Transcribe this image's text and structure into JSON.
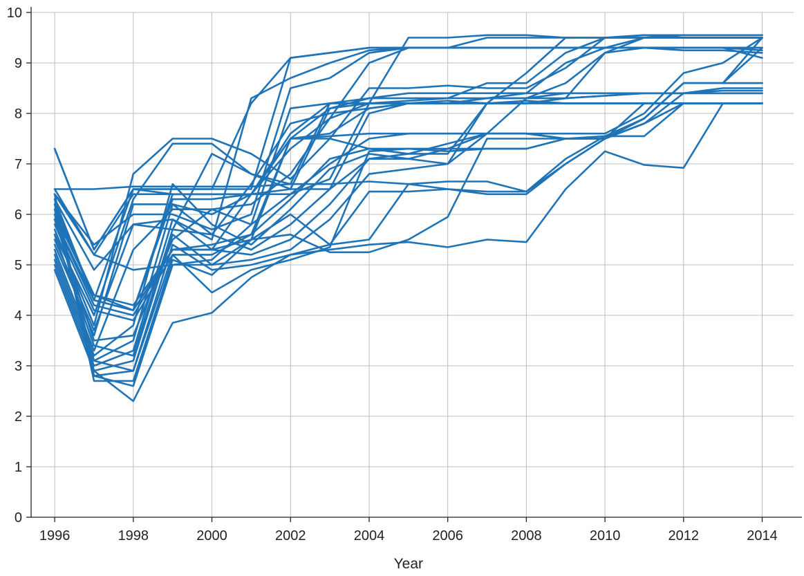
{
  "chart_data": {
    "type": "line",
    "title": "",
    "xlabel": "Year",
    "ylabel": "",
    "xlim": [
      1995.4,
      2014.8
    ],
    "ylim": [
      0,
      10
    ],
    "grid": true,
    "legend": "none",
    "x_ticks": [
      1996,
      1998,
      2000,
      2002,
      2004,
      2006,
      2008,
      2010,
      2012,
      2014
    ],
    "x_tick_labels": [
      "1996",
      "1998",
      "2000",
      "2002",
      "2004",
      "2006",
      "2008",
      "2010",
      "2012",
      "2014"
    ],
    "y_ticks": [
      0,
      1,
      2,
      3,
      4,
      5,
      6,
      7,
      8,
      9,
      10
    ],
    "y_tick_labels": [
      "0",
      "1",
      "2",
      "3",
      "4",
      "5",
      "6",
      "7",
      "8",
      "9",
      "10"
    ],
    "line_color": "#1f73b7",
    "x": [
      1996,
      1997,
      1998,
      1999,
      2000,
      2001,
      2002,
      2003,
      2004,
      2005,
      2006,
      2007,
      2008,
      2009,
      2010,
      2011,
      2012,
      2013,
      2014
    ],
    "series": [
      {
        "values": [
          7.3,
          5.3,
          6.5,
          6.5,
          6.5,
          6.5,
          9.1,
          9.2,
          9.3,
          9.3,
          9.3,
          9.3,
          9.3,
          9.3,
          9.3,
          9.3,
          9.3,
          9.3,
          9.3
        ]
      },
      {
        "values": [
          7.3,
          5.3,
          6.5,
          6.5,
          6.5,
          8.2,
          9.1,
          9.2,
          9.3,
          9.3,
          9.3,
          9.3,
          9.3,
          9.3,
          9.3,
          9.3,
          9.3,
          9.3,
          9.25
        ]
      },
      {
        "values": [
          6.5,
          6.5,
          6.55,
          6.55,
          6.55,
          6.55,
          6.6,
          6.6,
          6.65,
          6.6,
          6.65,
          6.65,
          6.45,
          7.1,
          7.55,
          7.9,
          8.6,
          8.6,
          9.5
        ]
      },
      {
        "values": [
          6.4,
          5.2,
          6.4,
          6.4,
          6.4,
          6.4,
          7.5,
          7.55,
          7.6,
          7.6,
          7.6,
          7.6,
          7.6,
          7.6,
          7.6,
          8.0,
          8.8,
          9.0,
          9.5
        ]
      },
      {
        "values": [
          6.3,
          4.3,
          6.5,
          6.4,
          6.4,
          6.4,
          6.5,
          8.1,
          8.2,
          8.2,
          8.2,
          8.2,
          8.2,
          8.2,
          8.2,
          8.2,
          8.2,
          8.2,
          8.2
        ]
      },
      {
        "values": [
          6.2,
          4.3,
          4.1,
          6.4,
          6.4,
          6.4,
          7.5,
          8.1,
          8.3,
          8.4,
          8.4,
          8.4,
          8.4,
          8.4,
          8.4,
          8.4,
          8.4,
          8.45,
          8.45
        ]
      },
      {
        "values": [
          6.1,
          4.4,
          4.1,
          6.3,
          6.3,
          6.4,
          7.3,
          7.9,
          8.2,
          8.2,
          8.2,
          8.2,
          8.25,
          8.2,
          8.2,
          8.2,
          8.2,
          8.2,
          8.2
        ]
      },
      {
        "values": [
          6.0,
          4.4,
          4.2,
          5.3,
          5.3,
          6.4,
          7.6,
          8.2,
          8.3,
          8.3,
          8.3,
          8.3,
          8.3,
          8.3,
          8.35,
          8.4,
          8.4,
          8.4,
          8.4
        ]
      },
      {
        "values": [
          5.9,
          4.3,
          4.1,
          5.3,
          5.3,
          5.5,
          7.5,
          7.6,
          8.1,
          8.2,
          8.2,
          8.2,
          8.2,
          8.2,
          8.2,
          8.2,
          8.2,
          8.2,
          8.2
        ]
      },
      {
        "values": [
          5.9,
          4.2,
          4.0,
          5.3,
          5.4,
          5.6,
          7.5,
          7.5,
          7.3,
          7.3,
          7.3,
          7.6,
          7.6,
          7.5,
          7.5,
          8.2,
          8.2,
          8.2,
          8.2
        ]
      },
      {
        "values": [
          5.8,
          4.1,
          3.9,
          5.2,
          5.2,
          5.6,
          6.3,
          7.1,
          7.3,
          7.2,
          7.2,
          8.2,
          8.2,
          8.3,
          9.2,
          9.3,
          9.3,
          9.3,
          9.3
        ]
      },
      {
        "values": [
          5.7,
          3.8,
          6.8,
          7.5,
          7.5,
          7.2,
          6.7,
          7.5,
          8.5,
          8.5,
          8.55,
          8.5,
          8.5,
          8.9,
          9.5,
          9.5,
          9.5,
          9.5,
          9.5
        ]
      },
      {
        "values": [
          5.6,
          4.0,
          6.3,
          7.4,
          7.4,
          6.8,
          6.6,
          8.2,
          8.2,
          8.25,
          8.3,
          8.6,
          8.6,
          9.2,
          9.5,
          9.55,
          9.5,
          9.5,
          9.5
        ]
      },
      {
        "values": [
          5.5,
          3.7,
          5.8,
          5.7,
          7.2,
          6.8,
          6.5,
          6.5,
          8.0,
          8.2,
          8.2,
          8.3,
          8.4,
          9.0,
          9.3,
          9.5,
          9.5,
          9.5,
          9.5
        ]
      },
      {
        "values": [
          5.4,
          3.6,
          6.2,
          6.2,
          6.0,
          6.4,
          6.4,
          6.7,
          8.2,
          9.5,
          9.5,
          9.55,
          9.55,
          9.5,
          9.5,
          9.55,
          9.55,
          9.55,
          9.55
        ]
      },
      {
        "values": [
          5.3,
          3.3,
          5.3,
          6.1,
          6.1,
          6.2,
          6.8,
          7.9,
          9.0,
          9.3,
          9.3,
          9.5,
          9.5,
          9.5,
          9.5,
          9.5,
          9.55,
          9.55,
          9.55
        ]
      },
      {
        "values": [
          5.2,
          3.2,
          3.8,
          6.6,
          5.8,
          5.4,
          6.1,
          6.9,
          7.2,
          7.1,
          7.0,
          8.2,
          8.8,
          9.5,
          9.5,
          9.5,
          9.5,
          9.5,
          9.5
        ]
      },
      {
        "values": [
          5.1,
          3.1,
          3.5,
          6.2,
          5.6,
          5.3,
          5.8,
          6.5,
          7.1,
          7.2,
          7.4,
          7.6,
          8.3,
          8.6,
          9.2,
          9.5,
          9.5,
          9.5,
          9.5
        ]
      },
      {
        "values": [
          5.0,
          3.0,
          3.3,
          5.9,
          5.3,
          5.2,
          5.5,
          6.2,
          7.1,
          7.1,
          7.3,
          7.3,
          7.3,
          7.5,
          7.5,
          7.9,
          8.6,
          8.6,
          9.3
        ]
      },
      {
        "values": [
          4.9,
          2.9,
          3.1,
          5.6,
          5.0,
          5.1,
          5.3,
          5.9,
          6.8,
          6.9,
          7.0,
          7.6,
          7.6,
          7.5,
          7.5,
          7.8,
          8.4,
          8.5,
          8.5
        ]
      },
      {
        "values": [
          6.4,
          2.8,
          2.9,
          5.4,
          4.9,
          5.0,
          5.2,
          5.4,
          6.45,
          6.45,
          6.5,
          6.45,
          6.45,
          7.0,
          7.5,
          7.9,
          8.6,
          8.6,
          8.6
        ]
      },
      {
        "values": [
          6.3,
          2.7,
          2.7,
          5.1,
          4.8,
          5.5,
          6.0,
          5.4,
          5.5,
          6.6,
          6.5,
          6.4,
          6.4,
          7.0,
          7.5,
          7.9,
          8.6,
          8.6,
          8.6
        ]
      },
      {
        "values": [
          6.2,
          2.8,
          2.6,
          5.0,
          5.0,
          5.5,
          5.6,
          5.25,
          5.25,
          5.5,
          5.95,
          7.5,
          7.5,
          7.5,
          7.55,
          7.55,
          8.2,
          8.2,
          8.2
        ]
      },
      {
        "values": [
          6.1,
          2.9,
          2.3,
          3.85,
          4.05,
          4.75,
          5.2,
          5.3,
          5.4,
          5.45,
          5.35,
          5.5,
          5.45,
          6.5,
          7.25,
          6.98,
          6.92,
          8.2,
          8.2
        ]
      },
      {
        "values": [
          6.0,
          3.1,
          2.9,
          5.2,
          4.45,
          4.9,
          5.1,
          5.35,
          7.25,
          7.3,
          7.25,
          7.3,
          7.3,
          7.5,
          7.5,
          7.8,
          8.2,
          8.2,
          8.2
        ]
      },
      {
        "values": [
          6.5,
          5.2,
          4.9,
          5.0,
          5.1,
          5.8,
          6.4,
          7.0,
          7.5,
          7.6,
          7.6,
          7.6,
          7.6,
          7.5,
          7.5,
          7.8,
          8.2,
          8.2,
          8.2
        ]
      },
      {
        "values": [
          6.4,
          5.4,
          6.0,
          6.0,
          5.7,
          6.0,
          8.5,
          8.7,
          9.2,
          9.3,
          9.3,
          9.3,
          9.3,
          9.3,
          9.3,
          9.3,
          9.25,
          9.25,
          9.2
        ]
      },
      {
        "values": [
          6.3,
          4.9,
          5.8,
          5.9,
          5.5,
          8.3,
          8.7,
          9.0,
          9.25,
          9.3,
          9.3,
          9.3,
          9.3,
          9.3,
          9.3,
          9.3,
          9.3,
          9.3,
          9.1
        ]
      },
      {
        "values": [
          5.9,
          3.5,
          3.6,
          5.5,
          6.1,
          5.8,
          8.1,
          8.2,
          8.2,
          8.2,
          8.2,
          8.3,
          8.3,
          8.4,
          8.4,
          8.4,
          8.4,
          8.4,
          8.4
        ]
      },
      {
        "values": [
          5.6,
          3.4,
          3.2,
          5.7,
          5.6,
          6.6,
          7.8,
          8.0,
          8.1,
          8.2,
          8.25,
          8.2,
          8.2,
          8.3,
          8.35,
          8.4,
          8.4,
          8.4,
          8.4
        ]
      }
    ]
  }
}
